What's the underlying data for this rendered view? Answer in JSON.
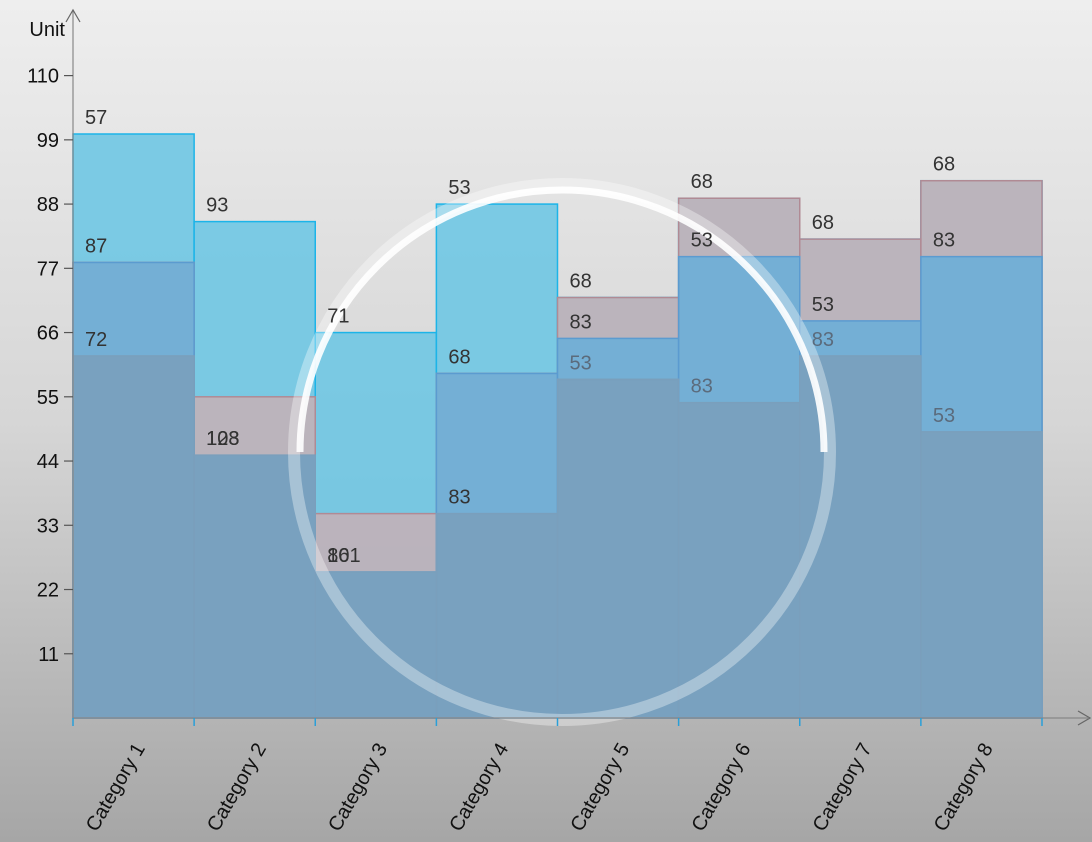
{
  "chart_data": {
    "type": "area",
    "step": true,
    "stacked": true,
    "ylabel": "Unit",
    "xlabel": "",
    "ylim": [
      0,
      121
    ],
    "yticks": [
      11,
      22,
      33,
      44,
      55,
      66,
      77,
      88,
      99,
      110
    ],
    "categories": [
      "Category 1",
      "Category 2",
      "Category 3",
      "Category 4",
      "Category 5",
      "Category 6",
      "Category 7",
      "Category 8"
    ],
    "series": [
      {
        "color": "#7a9fbc",
        "stroke": "#7a9fbc",
        "values": [
          62,
          45,
          25,
          35,
          58,
          54,
          62,
          49
        ],
        "labels": [
          "72",
          "123",
          "101",
          "83",
          "53",
          "83",
          "83",
          "53"
        ]
      },
      {
        "color": "#6aaed8",
        "stroke": "#5b9bd0",
        "values": [
          78,
          45,
          25,
          59,
          65,
          79,
          68,
          79
        ],
        "labels": [
          "87",
          "108",
          "86",
          "68",
          "83",
          "53",
          "53",
          "83"
        ]
      },
      {
        "color": "#c4b0b6",
        "stroke": "#b08a94",
        "values": [
          78,
          55,
          35,
          59,
          72,
          89,
          82,
          92
        ],
        "labels": [
          "",
          "",
          "",
          "",
          "68",
          "68",
          "68",
          "68"
        ]
      },
      {
        "color": "#6cc6e4",
        "stroke": "#1cb4e8",
        "values": [
          100,
          85,
          66,
          88,
          72,
          89,
          82,
          92
        ],
        "labels": [
          "57",
          "93",
          "71",
          "53",
          "",
          "",
          "",
          ""
        ]
      }
    ],
    "grid": false,
    "legend": "none"
  }
}
